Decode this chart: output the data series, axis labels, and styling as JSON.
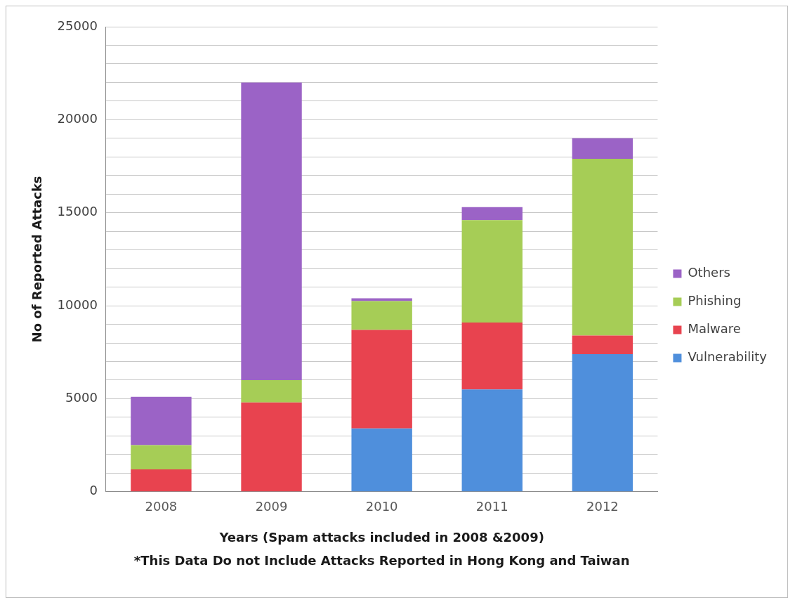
{
  "chart_data": {
    "type": "bar",
    "stacked": true,
    "categories": [
      "2008",
      "2009",
      "2010",
      "2011",
      "2012"
    ],
    "series": [
      {
        "name": "Vulnerability",
        "color": "#4f8fdc",
        "values": [
          null,
          null,
          3400,
          5500,
          7400
        ]
      },
      {
        "name": "Malware",
        "color": "#e8434f",
        "values": [
          1200,
          4800,
          5300,
          3600,
          1000
        ]
      },
      {
        "name": "Phishing",
        "color": "#a6cd56",
        "values": [
          1300,
          1200,
          1550,
          5500,
          9500
        ]
      },
      {
        "name": "Others",
        "color": "#9b63c6",
        "values": [
          2600,
          16000,
          150,
          700,
          1100
        ]
      }
    ],
    "xlabel": "Years (Spam attacks included in 2008 &2009)",
    "ylabel": "No of Reported Attacks",
    "annotations": [
      "*This Data Do not Include Attacks Reported in Hong Kong and Taiwan"
    ],
    "ylim": [
      0,
      25000
    ],
    "yticks": [
      0,
      {
        "value": 1000,
        "label": null
      },
      {
        "value": 2000,
        "label": null
      },
      {
        "value": 3000,
        "label": null
      },
      {
        "value": 4000,
        "label": null
      },
      5000,
      {
        "value": 6000,
        "label": null
      },
      {
        "value": 7000,
        "label": null
      },
      {
        "value": 8000,
        "label": null
      },
      {
        "value": 9000,
        "label": null
      },
      10000,
      {
        "value": 11000,
        "label": null
      },
      {
        "value": 12000,
        "label": null
      },
      {
        "value": 13000,
        "label": null
      },
      {
        "value": 14000,
        "label": null
      },
      15000,
      {
        "value": 16000,
        "label": null
      },
      {
        "value": 17000,
        "label": null
      },
      {
        "value": 18000,
        "label": null
      },
      {
        "value": 19000,
        "label": null
      },
      20000,
      {
        "value": 21000,
        "label": null
      },
      {
        "value": 22000,
        "label": null
      },
      {
        "value": 23000,
        "label": null
      },
      {
        "value": 24000,
        "label": null
      },
      25000
    ],
    "grid": "y",
    "legend": "right"
  }
}
